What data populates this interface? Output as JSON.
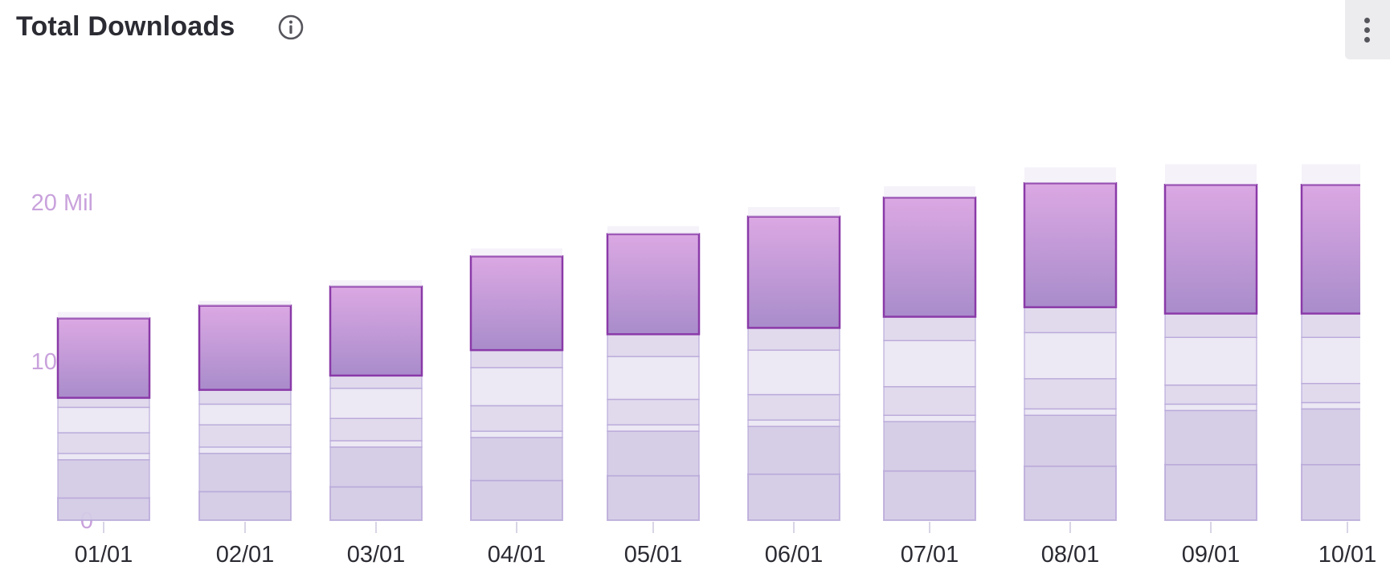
{
  "header": {
    "title": "Total Downloads"
  },
  "icons": {
    "info": "info-circle-icon",
    "menu": "more-vertical-icon"
  },
  "colors": {
    "primary_fill_top": "#dba8e3",
    "primary_fill_bottom": "#a98ccb",
    "primary_stroke": "#8a3aa8",
    "stack_fill": "#d4cbe6",
    "stack_stroke": "#b7a6d8",
    "ytick": "#c9a2dc",
    "xtick": "#2b2b33"
  },
  "chart_data": {
    "type": "bar",
    "stacked": true,
    "title": "Total Downloads",
    "xlabel": "",
    "ylabel": "",
    "ylim": [
      0,
      25000000
    ],
    "yticks": [
      {
        "value": 0,
        "label": "0"
      },
      {
        "value": 10000000,
        "label": "10 Mil"
      },
      {
        "value": 20000000,
        "label": "20 Mil"
      }
    ],
    "categories": [
      "01/01",
      "02/01",
      "03/01",
      "04/01",
      "05/01",
      "06/01",
      "07/01",
      "08/01",
      "09/01",
      "10/01"
    ],
    "series": [
      {
        "values": [
          1400000,
          1800000,
          2100000,
          2500000,
          2800000,
          2900000,
          3100000,
          3400000,
          3500000,
          3500000
        ]
      },
      {
        "values": [
          2400000,
          2400000,
          2500000,
          2700000,
          2800000,
          3000000,
          3100000,
          3200000,
          3400000,
          3500000
        ]
      },
      {
        "values": [
          400000,
          400000,
          400000,
          400000,
          400000,
          400000,
          400000,
          400000,
          400000,
          400000
        ]
      },
      {
        "values": [
          1300000,
          1400000,
          1400000,
          1600000,
          1600000,
          1600000,
          1800000,
          1900000,
          1200000,
          1200000
        ]
      },
      {
        "values": [
          1600000,
          1300000,
          1900000,
          2400000,
          2700000,
          2800000,
          2900000,
          2900000,
          3000000,
          2900000
        ]
      },
      {
        "values": [
          600000,
          900000,
          800000,
          1100000,
          1400000,
          1400000,
          1500000,
          1600000,
          1500000,
          1500000
        ]
      },
      {
        "values": [
          5000000,
          5300000,
          5600000,
          5900000,
          6300000,
          7000000,
          7500000,
          7800000,
          8100000,
          8100000
        ]
      },
      {
        "values": [
          400000,
          300000,
          400000,
          500000,
          500000,
          600000,
          700000,
          1000000,
          1300000,
          1300000
        ]
      }
    ],
    "highlighted_series_index": 6,
    "grid": false,
    "legend": "none"
  }
}
